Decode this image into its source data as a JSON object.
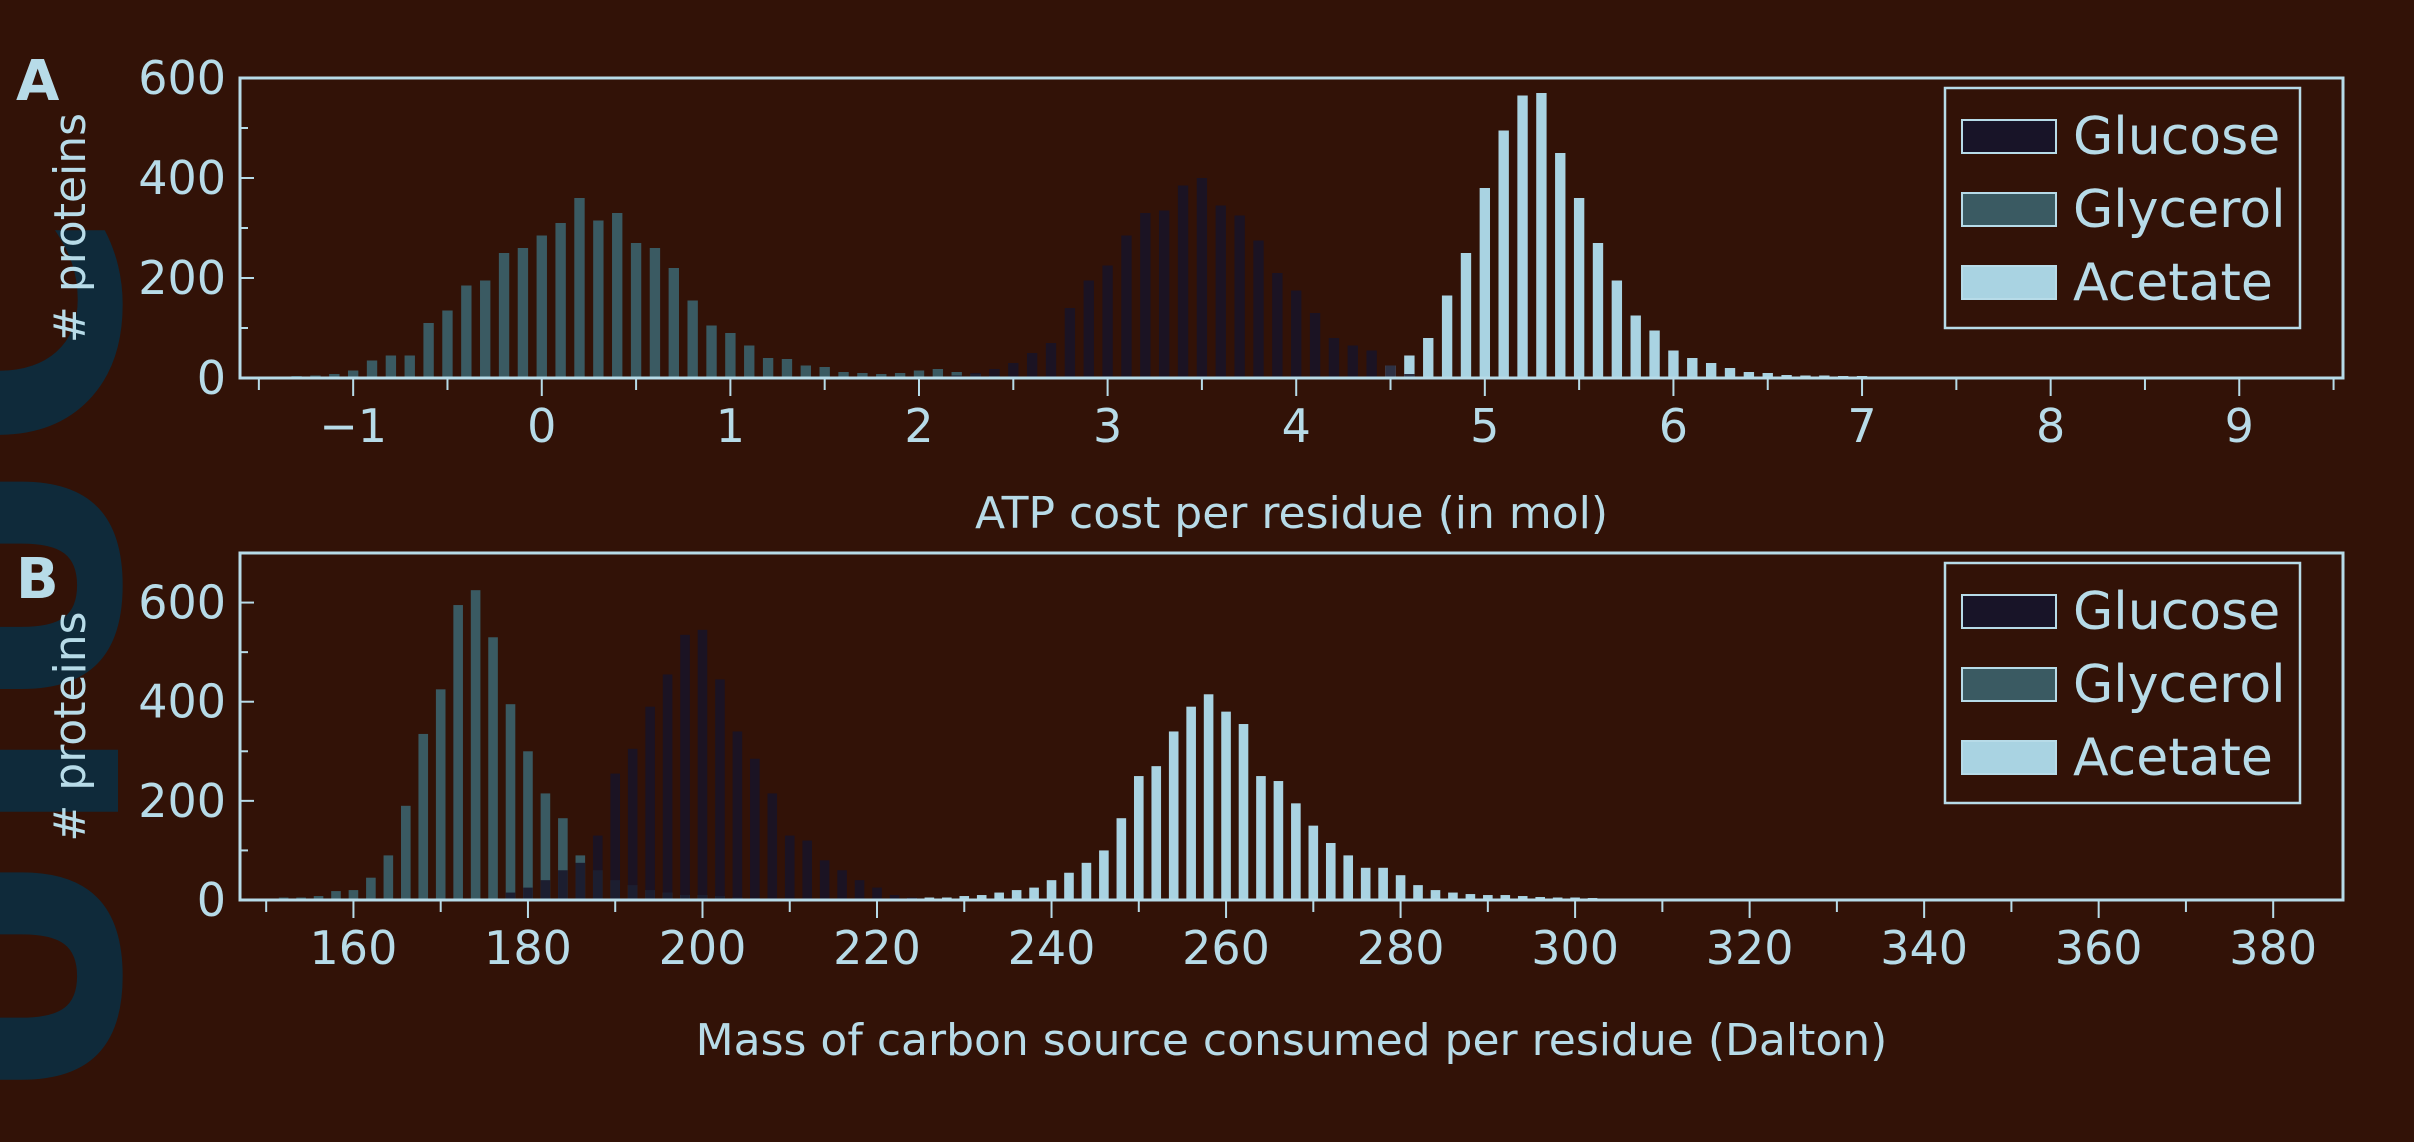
{
  "colors": {
    "background": "#321207",
    "axis": "#b7dbe8",
    "glucose": "#181428",
    "glycerol": "#3a5a62",
    "acetate": "#a9d3e2",
    "watermark": "#0f2a3a"
  },
  "watermark": "UIUC",
  "chart_data": [
    {
      "type": "bar",
      "panel": "A",
      "xlabel": "ATP cost per residue (in mol)",
      "ylabel": "# proteins",
      "xlim": [
        -1.6,
        9.55
      ],
      "ylim": [
        0,
        600
      ],
      "xticks": [
        -1,
        0,
        1,
        2,
        3,
        4,
        5,
        6,
        7,
        8,
        9
      ],
      "xtick_labels": [
        "−1",
        "0",
        "1",
        "2",
        "3",
        "4",
        "5",
        "6",
        "7",
        "8",
        "9"
      ],
      "yticks": [
        0,
        200,
        400,
        600
      ],
      "ytick_labels": [
        "0",
        "200",
        "400",
        "600"
      ],
      "bin_width": 0.1,
      "legend": [
        "Glucose",
        "Glycerol",
        "Acetate"
      ],
      "legend_position": "top-right",
      "series": [
        {
          "name": "Glucose",
          "x": [
            2.2,
            2.3,
            2.4,
            2.5,
            2.6,
            2.7,
            2.8,
            2.9,
            3.0,
            3.1,
            3.2,
            3.3,
            3.4,
            3.5,
            3.6,
            3.7,
            3.8,
            3.9,
            4.0,
            4.1,
            4.2,
            4.3,
            4.4,
            4.5,
            4.6
          ],
          "values": [
            5,
            10,
            18,
            30,
            50,
            70,
            140,
            195,
            225,
            285,
            330,
            335,
            385,
            400,
            345,
            325,
            275,
            210,
            175,
            130,
            80,
            65,
            55,
            25,
            8
          ]
        },
        {
          "name": "Glycerol",
          "x": [
            -1.5,
            -1.4,
            -1.3,
            -1.2,
            -1.1,
            -1.0,
            -0.9,
            -0.8,
            -0.7,
            -0.6,
            -0.5,
            -0.4,
            -0.3,
            -0.2,
            -0.1,
            0.0,
            0.1,
            0.2,
            0.3,
            0.4,
            0.5,
            0.6,
            0.7,
            0.8,
            0.9,
            1.0,
            1.1,
            1.2,
            1.3,
            1.4,
            1.5,
            1.6,
            1.7,
            1.8,
            1.9,
            2.0,
            2.1,
            2.2,
            2.3,
            2.4,
            2.5
          ],
          "values": [
            2,
            3,
            4,
            5,
            8,
            15,
            35,
            45,
            45,
            110,
            135,
            185,
            195,
            250,
            260,
            285,
            310,
            360,
            315,
            330,
            270,
            260,
            220,
            155,
            105,
            90,
            65,
            40,
            38,
            25,
            22,
            12,
            10,
            8,
            10,
            15,
            18,
            12,
            8,
            4,
            2
          ]
        },
        {
          "name": "Acetate",
          "x": [
            4.5,
            4.6,
            4.7,
            4.8,
            4.9,
            5.0,
            5.1,
            5.2,
            5.3,
            5.4,
            5.5,
            5.6,
            5.7,
            5.8,
            5.9,
            6.0,
            6.1,
            6.2,
            6.3,
            6.4,
            6.5,
            6.6,
            6.7,
            6.8,
            6.9,
            7.0,
            7.1,
            7.2,
            7.3
          ],
          "values": [
            25,
            45,
            80,
            165,
            250,
            380,
            495,
            565,
            570,
            450,
            360,
            270,
            195,
            125,
            95,
            55,
            40,
            30,
            20,
            12,
            10,
            6,
            5,
            5,
            4,
            4,
            3,
            2,
            2
          ]
        }
      ]
    },
    {
      "type": "bar",
      "panel": "B",
      "xlabel": "Mass of carbon source consumed per residue (Dalton)",
      "ylabel": "# proteins",
      "xlim": [
        147,
        388
      ],
      "ylim": [
        0,
        700
      ],
      "xticks": [
        160,
        180,
        200,
        220,
        240,
        260,
        280,
        300,
        320,
        340,
        360,
        380
      ],
      "xtick_labels": [
        "160",
        "180",
        "200",
        "220",
        "240",
        "260",
        "280",
        "300",
        "320",
        "340",
        "360",
        "380"
      ],
      "yticks": [
        0,
        200,
        400,
        600
      ],
      "ytick_labels": [
        "0",
        "200",
        "400",
        "600"
      ],
      "bin_width": 2,
      "legend": [
        "Glucose",
        "Glycerol",
        "Acetate"
      ],
      "legend_position": "top-right",
      "series": [
        {
          "name": "Glucose",
          "x": [
            178,
            180,
            182,
            184,
            186,
            188,
            190,
            192,
            194,
            196,
            198,
            200,
            202,
            204,
            206,
            208,
            210,
            212,
            214,
            216,
            218,
            220,
            222,
            224
          ],
          "values": [
            15,
            25,
            40,
            60,
            75,
            130,
            255,
            305,
            390,
            455,
            535,
            545,
            445,
            340,
            285,
            215,
            130,
            120,
            80,
            60,
            40,
            25,
            10,
            5
          ]
        },
        {
          "name": "Glycerol",
          "x": [
            150,
            152,
            154,
            156,
            158,
            160,
            162,
            164,
            166,
            168,
            170,
            172,
            174,
            176,
            178,
            180,
            182,
            184,
            186,
            188,
            190,
            192,
            194,
            196,
            198,
            200,
            202,
            204,
            206,
            208,
            210
          ],
          "values": [
            3,
            5,
            5,
            8,
            18,
            20,
            45,
            90,
            190,
            335,
            425,
            595,
            625,
            530,
            395,
            300,
            215,
            165,
            90,
            60,
            40,
            30,
            20,
            15,
            10,
            10,
            8,
            5,
            4,
            3,
            2
          ]
        },
        {
          "name": "Acetate",
          "x": [
            222,
            224,
            226,
            228,
            230,
            232,
            234,
            236,
            238,
            240,
            242,
            244,
            246,
            248,
            250,
            252,
            254,
            256,
            258,
            260,
            262,
            264,
            266,
            268,
            270,
            272,
            274,
            276,
            278,
            280,
            282,
            284,
            286,
            288,
            290,
            292,
            294,
            296,
            298,
            300,
            302,
            304,
            306,
            308,
            310,
            312,
            314,
            316,
            318,
            320,
            322,
            324
          ],
          "values": [
            3,
            4,
            5,
            5,
            8,
            10,
            15,
            20,
            25,
            40,
            55,
            75,
            100,
            165,
            250,
            270,
            340,
            390,
            415,
            380,
            355,
            250,
            240,
            195,
            150,
            115,
            90,
            65,
            65,
            50,
            30,
            20,
            15,
            12,
            10,
            10,
            8,
            6,
            5,
            5,
            4,
            3,
            3,
            2,
            2,
            2,
            2,
            2,
            2,
            2,
            1,
            1
          ]
        }
      ]
    }
  ]
}
